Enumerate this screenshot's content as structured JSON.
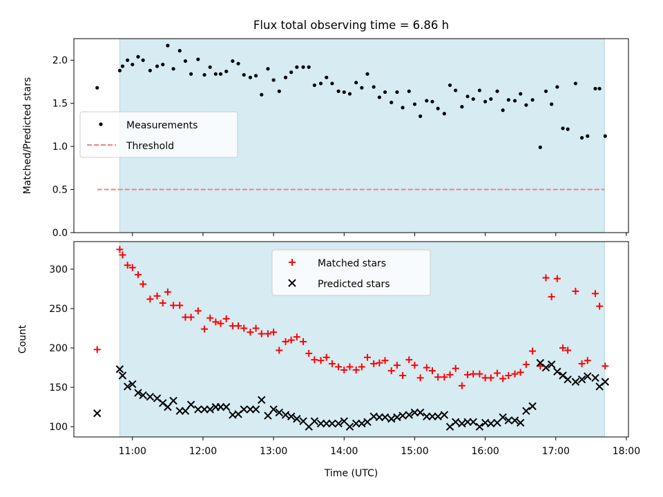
{
  "chart_data": [
    {
      "type": "scatter",
      "title": "Flux total observing time = 6.86 h",
      "xlabel": "",
      "ylabel": "Matched/Predicted stars",
      "ylim": [
        0,
        2.25
      ],
      "xlim": [
        10.17,
        18.03
      ],
      "yticks": [
        0.0,
        0.5,
        1.0,
        1.5,
        2.0
      ],
      "ytick_labels": [
        "0.0",
        "0.5",
        "1.0",
        "1.5",
        "2.0"
      ],
      "observing_window": [
        10.82,
        17.69
      ],
      "legend": {
        "position": "center-left",
        "entries": [
          "Measurements",
          "Threshold"
        ]
      },
      "threshold": {
        "name": "Threshold",
        "y": 0.5,
        "x_start": 10.5,
        "x_end": 17.69,
        "color": "#f08080"
      },
      "series": [
        {
          "name": "Measurements",
          "marker": "dot",
          "color": "#000000",
          "x": [
            10.5,
            10.82,
            10.86,
            10.93,
            11.0,
            11.08,
            11.15,
            11.25,
            11.35,
            11.43,
            11.5,
            11.58,
            11.67,
            11.75,
            11.83,
            11.93,
            12.02,
            12.1,
            12.18,
            12.25,
            12.33,
            12.42,
            12.5,
            12.58,
            12.67,
            12.75,
            12.83,
            12.92,
            13.0,
            13.08,
            13.17,
            13.25,
            13.33,
            13.42,
            13.5,
            13.58,
            13.67,
            13.75,
            13.83,
            13.92,
            14.0,
            14.08,
            14.17,
            14.25,
            14.33,
            14.42,
            14.5,
            14.58,
            14.67,
            14.75,
            14.83,
            14.92,
            15.0,
            15.08,
            15.17,
            15.25,
            15.33,
            15.42,
            15.5,
            15.58,
            15.67,
            15.75,
            15.83,
            15.92,
            16.0,
            16.08,
            16.17,
            16.25,
            16.33,
            16.42,
            16.5,
            16.58,
            16.67,
            16.78,
            16.86,
            16.94,
            17.02,
            17.1,
            17.17,
            17.28,
            17.37,
            17.45,
            17.56,
            17.62,
            17.7
          ],
          "y": [
            1.68,
            1.88,
            1.93,
            2.0,
            1.95,
            2.04,
            2.0,
            1.88,
            1.93,
            1.95,
            2.17,
            1.9,
            2.11,
            1.99,
            1.84,
            2.01,
            1.83,
            1.92,
            1.84,
            1.84,
            1.87,
            1.99,
            1.96,
            1.83,
            1.8,
            1.82,
            1.6,
            1.9,
            1.77,
            1.64,
            1.8,
            1.86,
            1.92,
            1.92,
            1.92,
            1.71,
            1.73,
            1.8,
            1.73,
            1.64,
            1.63,
            1.61,
            1.74,
            1.68,
            1.84,
            1.69,
            1.57,
            1.63,
            1.51,
            1.63,
            1.45,
            1.64,
            1.49,
            1.35,
            1.53,
            1.52,
            1.44,
            1.38,
            1.71,
            1.65,
            1.46,
            1.58,
            1.55,
            1.65,
            1.52,
            1.55,
            1.64,
            1.42,
            1.54,
            1.53,
            1.61,
            1.48,
            1.54,
            0.99,
            1.64,
            1.49,
            1.69,
            1.21,
            1.2,
            1.73,
            1.1,
            1.12,
            1.67,
            1.67,
            1.12
          ]
        }
      ]
    },
    {
      "type": "scatter",
      "title": "",
      "xlabel": "Time (UTC)",
      "ylabel": "Count",
      "ylim": [
        87,
        335
      ],
      "xlim": [
        10.17,
        18.03
      ],
      "yticks": [
        100,
        150,
        200,
        250,
        300
      ],
      "ytick_labels": [
        "100",
        "150",
        "200",
        "250",
        "300"
      ],
      "xticks": [
        11,
        12,
        13,
        14,
        15,
        16,
        17,
        18
      ],
      "xtick_labels": [
        "11:00",
        "12:00",
        "13:00",
        "14:00",
        "15:00",
        "16:00",
        "17:00",
        "18:00"
      ],
      "observing_window": [
        10.82,
        17.69
      ],
      "legend": {
        "position": "top-center",
        "entries": [
          "Matched stars",
          "Predicted stars"
        ]
      },
      "series": [
        {
          "name": "Matched stars",
          "marker": "plus",
          "color": "#ff0000",
          "x": [
            10.5,
            10.82,
            10.86,
            10.93,
            11.0,
            11.08,
            11.15,
            11.25,
            11.35,
            11.43,
            11.5,
            11.58,
            11.67,
            11.75,
            11.83,
            11.93,
            12.02,
            12.1,
            12.18,
            12.25,
            12.33,
            12.42,
            12.5,
            12.58,
            12.67,
            12.75,
            12.83,
            12.92,
            13.0,
            13.08,
            13.17,
            13.25,
            13.33,
            13.42,
            13.5,
            13.58,
            13.67,
            13.75,
            13.83,
            13.92,
            14.0,
            14.08,
            14.17,
            14.25,
            14.33,
            14.42,
            14.5,
            14.58,
            14.67,
            14.75,
            14.83,
            14.92,
            15.0,
            15.08,
            15.17,
            15.25,
            15.33,
            15.42,
            15.5,
            15.58,
            15.67,
            15.75,
            15.83,
            15.92,
            16.0,
            16.08,
            16.17,
            16.25,
            16.33,
            16.42,
            16.5,
            16.58,
            16.67,
            16.78,
            16.86,
            16.94,
            17.02,
            17.1,
            17.17,
            17.28,
            17.37,
            17.45,
            17.56,
            17.62,
            17.7
          ],
          "y": [
            198,
            325,
            318,
            305,
            302,
            293,
            281,
            262,
            266,
            257,
            271,
            254,
            254,
            239,
            239,
            247,
            224,
            238,
            233,
            231,
            237,
            228,
            228,
            225,
            220,
            225,
            218,
            218,
            220,
            197,
            208,
            210,
            214,
            208,
            193,
            185,
            184,
            188,
            180,
            176,
            172,
            176,
            172,
            176,
            188,
            180,
            181,
            184,
            171,
            178,
            165,
            185,
            178,
            162,
            175,
            171,
            163,
            163,
            166,
            174,
            152,
            166,
            167,
            167,
            162,
            162,
            168,
            161,
            165,
            167,
            169,
            179,
            196,
            177,
            289,
            265,
            288,
            200,
            197,
            272,
            180,
            184,
            269,
            253,
            177
          ]
        },
        {
          "name": "Predicted stars",
          "marker": "x",
          "color": "#000000",
          "x": [
            10.5,
            10.82,
            10.86,
            10.93,
            11.0,
            11.08,
            11.15,
            11.25,
            11.35,
            11.43,
            11.5,
            11.58,
            11.67,
            11.75,
            11.83,
            11.93,
            12.02,
            12.1,
            12.18,
            12.25,
            12.33,
            12.42,
            12.5,
            12.58,
            12.67,
            12.75,
            12.83,
            12.92,
            13.0,
            13.08,
            13.17,
            13.25,
            13.33,
            13.42,
            13.5,
            13.58,
            13.67,
            13.75,
            13.83,
            13.92,
            14.0,
            14.08,
            14.17,
            14.25,
            14.33,
            14.42,
            14.5,
            14.58,
            14.67,
            14.75,
            14.83,
            14.92,
            15.0,
            15.08,
            15.17,
            15.25,
            15.33,
            15.42,
            15.5,
            15.58,
            15.67,
            15.75,
            15.83,
            15.92,
            16.0,
            16.08,
            16.17,
            16.25,
            16.33,
            16.42,
            16.5,
            16.58,
            16.67,
            16.78,
            16.86,
            16.94,
            17.02,
            17.1,
            17.17,
            17.28,
            17.37,
            17.45,
            17.56,
            17.62,
            17.7
          ],
          "y": [
            117,
            173,
            165,
            151,
            154,
            143,
            140,
            138,
            136,
            130,
            125,
            133,
            120,
            120,
            128,
            122,
            122,
            122,
            125,
            125,
            125,
            115,
            116,
            122,
            122,
            122,
            134,
            114,
            122,
            118,
            115,
            113,
            110,
            107,
            100,
            107,
            104,
            104,
            104,
            104,
            107,
            100,
            104,
            104,
            106,
            113,
            112,
            112,
            110,
            112,
            114,
            115,
            118,
            118,
            113,
            113,
            113,
            115,
            100,
            106,
            104,
            106,
            106,
            100,
            105,
            104,
            105,
            112,
            108,
            108,
            105,
            120,
            126,
            181,
            175,
            179,
            170,
            165,
            160,
            157,
            160,
            164,
            162,
            151,
            157
          ]
        }
      ]
    }
  ]
}
